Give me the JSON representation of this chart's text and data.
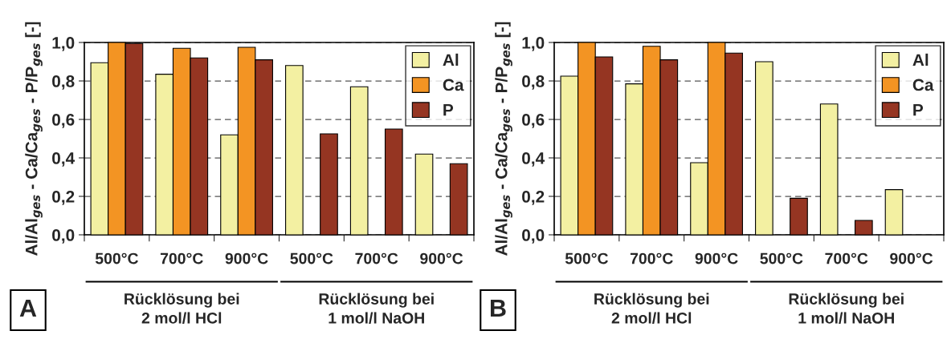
{
  "chart_data": [
    {
      "type": "bar",
      "categories": [
        "500°C",
        "700°C",
        "900°C",
        "500°C",
        "700°C",
        "900°C"
      ],
      "ylabel": "Al/Al$_{ges}$ - Ca/Ca$_{ges}$ - P/P$_{ges}$ [-]",
      "series": [
        {
          "name": "Al",
          "color": "#f3f0a2",
          "values": [
            0.895,
            0.835,
            0.52,
            0.88,
            0.77,
            0.42
          ]
        },
        {
          "name": "Ca",
          "color": "#f39423",
          "values": [
            1.0,
            0.97,
            0.975,
            null,
            null,
            null
          ]
        },
        {
          "name": "P",
          "color": "#953522",
          "values": [
            0.995,
            0.92,
            0.91,
            0.525,
            0.55,
            0.37
          ]
        }
      ],
      "ylim": [
        0,
        1.0
      ],
      "yticks": [
        {
          "value": 0,
          "label": "0,0"
        },
        {
          "value": 0.2,
          "label": "0,2"
        },
        {
          "value": 0.4,
          "label": "0,4"
        },
        {
          "value": 0.6,
          "label": "0,6"
        },
        {
          "value": 0.8,
          "label": "0,8"
        },
        {
          "value": 1.0,
          "label": "1,0"
        }
      ],
      "grid": "y",
      "legend": "top right",
      "annotations": [
        "A",
        "Rücklösung bei\n2 mol/l HCl",
        "Rücklösung bei\n1 mol/l NaOH"
      ]
    },
    {
      "type": "bar",
      "categories": [
        "500°C",
        "700°C",
        "900°C",
        "500°C",
        "700°C",
        "900°C"
      ],
      "ylabel": "Al/Al$_{ges}$ - Ca/Ca$_{ges}$ - P/P$_{ges}$ [-]",
      "series": [
        {
          "name": "Al",
          "color": "#f3f0a2",
          "values": [
            0.825,
            0.785,
            0.375,
            0.9,
            0.68,
            0.235
          ]
        },
        {
          "name": "Ca",
          "color": "#f39423",
          "values": [
            1.0,
            0.98,
            1.0,
            null,
            null,
            null
          ]
        },
        {
          "name": "P",
          "color": "#953522",
          "values": [
            0.925,
            0.91,
            0.945,
            0.19,
            0.075,
            null
          ]
        }
      ],
      "ylim": [
        0,
        1.0
      ],
      "yticks": [
        {
          "value": 0,
          "label": "0,0"
        },
        {
          "value": 0.2,
          "label": "0,2"
        },
        {
          "value": 0.4,
          "label": "0,4"
        },
        {
          "value": 0.6,
          "label": "0,6"
        },
        {
          "value": 0.8,
          "label": "0,8"
        },
        {
          "value": 1.0,
          "label": "1,0"
        }
      ],
      "grid": "y",
      "legend": "top right",
      "annotations": [
        "B",
        "Rücklösung bei\n2 mol/l HCl",
        "Rücklösung bei\n1 mol/l NaOH"
      ]
    }
  ]
}
